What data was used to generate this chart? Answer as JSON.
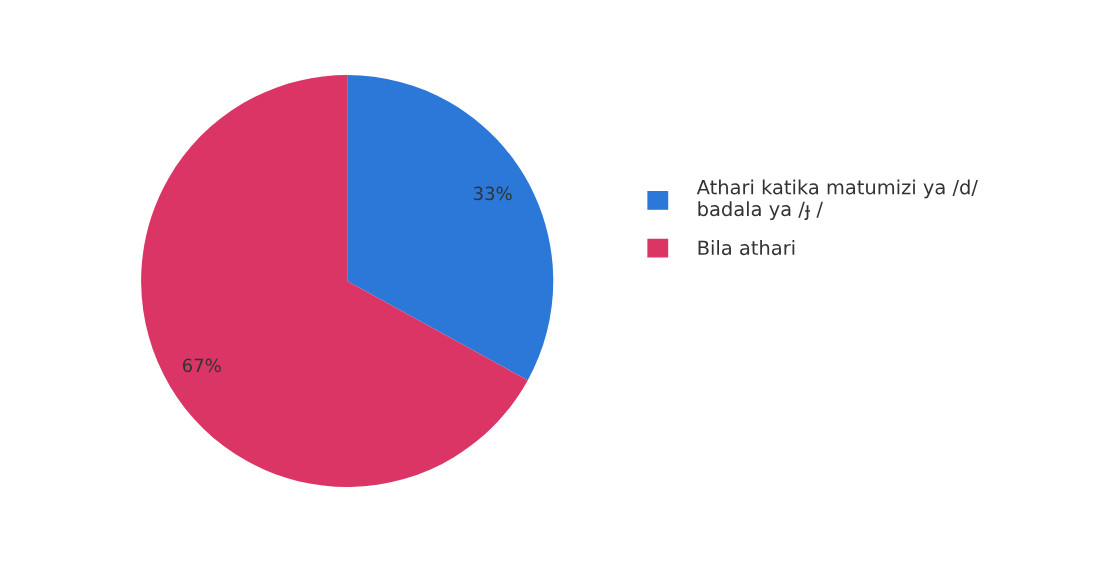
{
  "chart_data": {
    "type": "pie",
    "categories": [
      "Athari katika matumizi ya /d/\nbadala ya /ɟ /",
      "Bila athari"
    ],
    "values": [
      33,
      67
    ],
    "colors": [
      "#2b78d8",
      "#db3566"
    ],
    "value_labels": [
      "33%",
      "67%"
    ],
    "legend": "right"
  }
}
